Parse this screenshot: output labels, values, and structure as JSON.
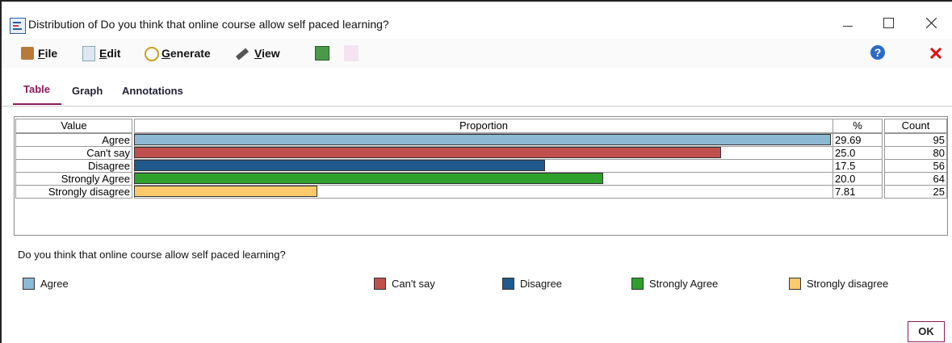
{
  "window": {
    "title": "Distribution of Do you think that online course allow self paced learning?"
  },
  "menu": [
    "File",
    "Edit",
    "Generate",
    "View"
  ],
  "tabs": [
    "Table",
    "Graph",
    "Annotations"
  ],
  "table": {
    "headers": [
      "Value",
      "Proportion",
      "%",
      "Count"
    ],
    "rows": [
      {
        "value": "Agree",
        "color": "#8db8d3",
        "percent": "29.69",
        "count": 95
      },
      {
        "value": "Can't say",
        "color": "#c0504d",
        "percent": "25.0",
        "count": 80
      },
      {
        "value": "Disagree",
        "color": "#1f5b8e",
        "percent": "17.5",
        "count": 56
      },
      {
        "value": "Strongly Agree",
        "color": "#2ea02c",
        "percent": "20.0",
        "count": 64
      },
      {
        "value": "Strongly disagree",
        "color": "#fdc96b",
        "percent": "7.81",
        "count": 25
      }
    ]
  },
  "legend": {
    "title": "Do you think that online course allow self paced learning?"
  },
  "button": "OK"
}
